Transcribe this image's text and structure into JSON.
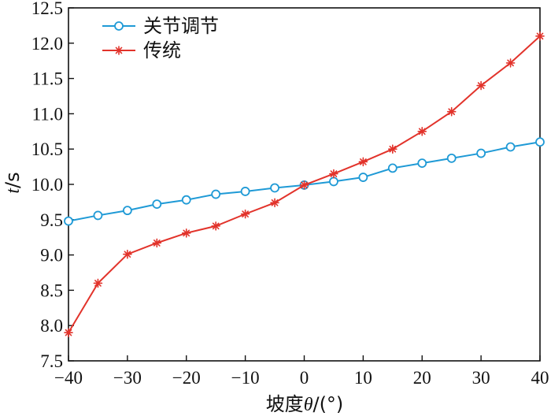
{
  "chart_data": {
    "type": "line",
    "xlabel_prefix": "坡度",
    "xlabel_symbol": "θ",
    "xlabel_suffix": "/(°)",
    "ylabel_symbol": "t",
    "ylabel_suffix": "/s",
    "xlim": [
      -40,
      40
    ],
    "ylim": [
      7.5,
      12.5
    ],
    "xticks": [
      -40,
      -30,
      -20,
      -10,
      0,
      10,
      20,
      30,
      40
    ],
    "xtick_labels": [
      "−40",
      "−30",
      "−20",
      "−10",
      "0",
      "10",
      "20",
      "30",
      "40"
    ],
    "yticks": [
      7.5,
      8.0,
      8.5,
      9.0,
      9.5,
      10.0,
      10.5,
      11.0,
      11.5,
      12.0,
      12.5
    ],
    "ytick_labels": [
      "7.5",
      "8.0",
      "8.5",
      "9.0",
      "9.5",
      "10.0",
      "10.5",
      "11.0",
      "11.5",
      "12.0",
      "12.5"
    ],
    "grid": false,
    "legend_position": "top-left",
    "x": [
      -40,
      -35,
      -30,
      -25,
      -20,
      -15,
      -10,
      -5,
      0,
      5,
      10,
      15,
      20,
      25,
      30,
      35,
      40
    ],
    "series": [
      {
        "name": "关节调节",
        "color": "#1f9ad6",
        "marker": "circle",
        "values": [
          9.48,
          9.56,
          9.63,
          9.72,
          9.78,
          9.86,
          9.9,
          9.95,
          9.99,
          10.04,
          10.1,
          10.23,
          10.3,
          10.37,
          10.44,
          10.53,
          10.6
        ]
      },
      {
        "name": "传统",
        "color": "#e2332b",
        "marker": "asterisk",
        "values": [
          7.9,
          8.6,
          9.01,
          9.17,
          9.31,
          9.41,
          9.58,
          9.74,
          9.99,
          10.15,
          10.32,
          10.5,
          10.75,
          11.03,
          11.4,
          11.72,
          12.1
        ]
      }
    ]
  }
}
